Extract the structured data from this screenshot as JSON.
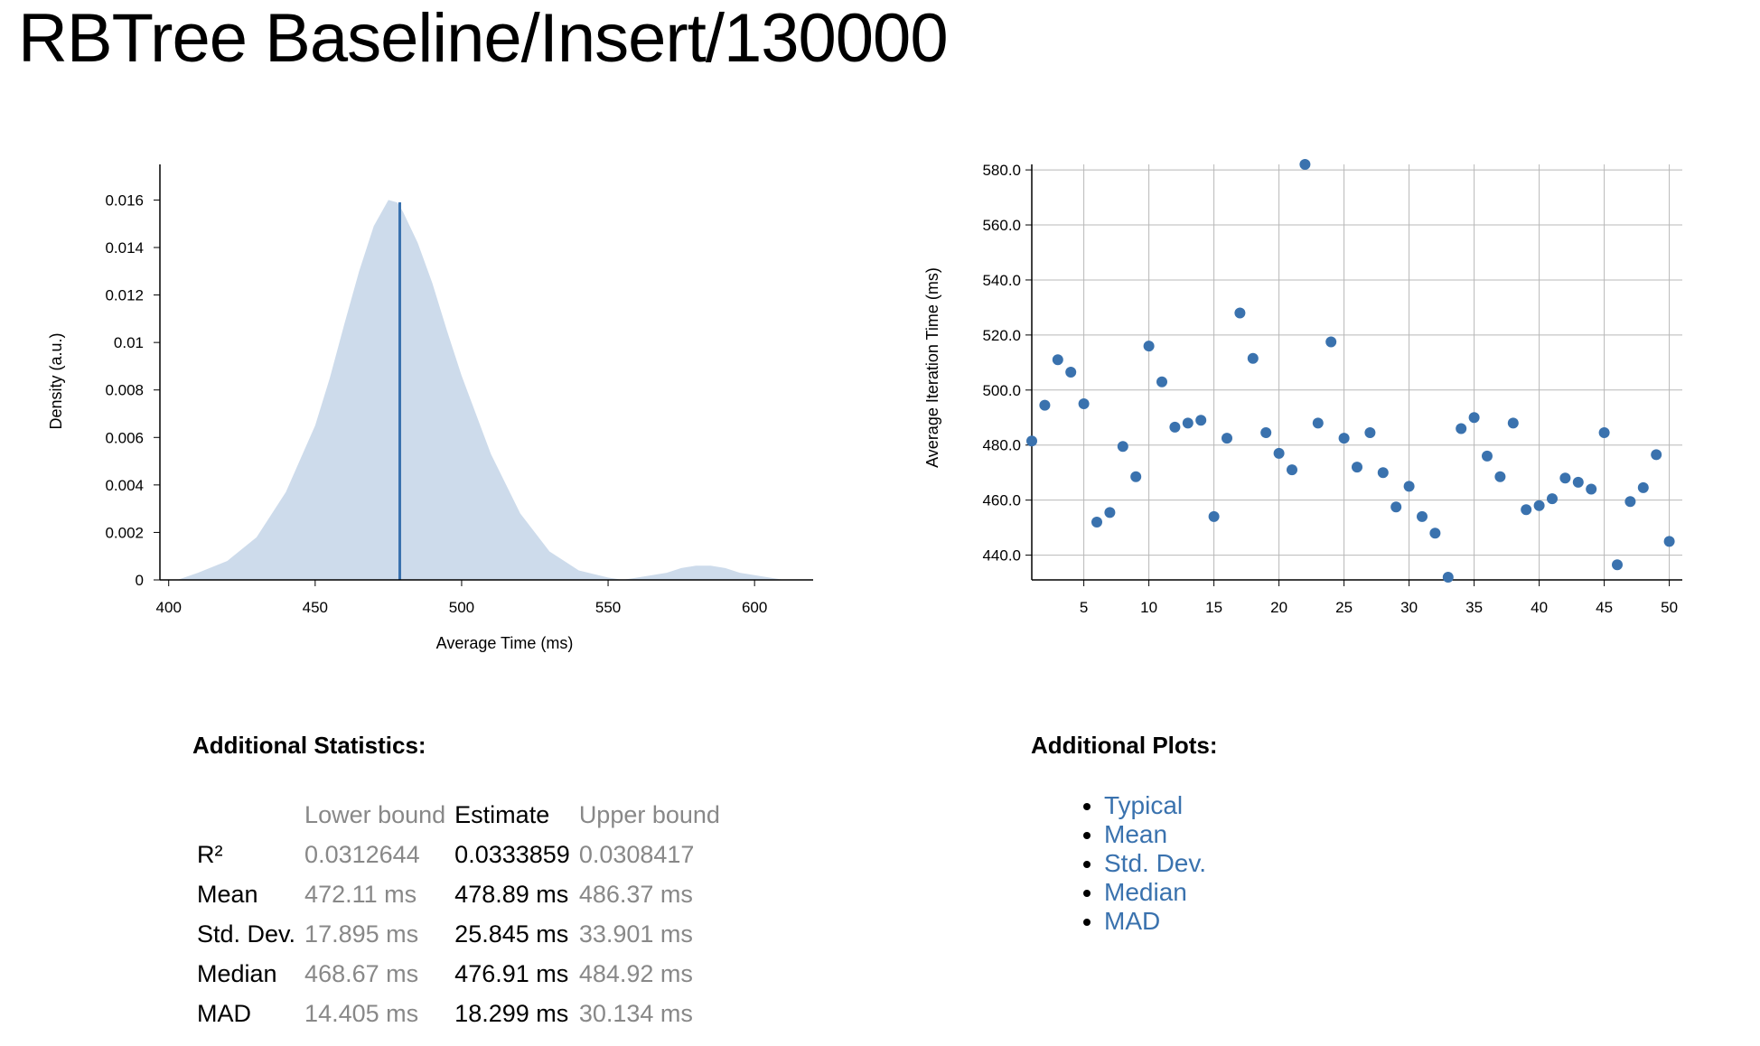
{
  "page": {
    "title": "RBTree Baseline/Insert/130000"
  },
  "colors": {
    "accent": "#3a72ae",
    "pdf_fill": "#cddbeb",
    "muted_text": "#888888"
  },
  "chart_data": [
    {
      "type": "area",
      "xlabel": "Average Time (ms)",
      "ylabel": "Density (a.u.)",
      "xlim": [
        397,
        620
      ],
      "ylim": [
        0,
        0.0175
      ],
      "x_ticks": [
        "400",
        "450",
        "500",
        "550",
        "600"
      ],
      "x_tick_values": [
        400,
        450,
        500,
        550,
        600
      ],
      "y_ticks": [
        "0",
        "0.002",
        "0.004",
        "0.006",
        "0.008",
        "0.01",
        "0.012",
        "0.014",
        "0.016"
      ],
      "y_tick_values": [
        0,
        0.002,
        0.004,
        0.006,
        0.008,
        0.01,
        0.012,
        0.014,
        0.016
      ],
      "x": [
        403,
        410,
        420,
        430,
        440,
        450,
        455,
        460,
        465,
        470,
        475,
        478,
        480,
        485,
        490,
        495,
        500,
        510,
        520,
        530,
        540,
        550,
        555,
        560,
        565,
        570,
        575,
        580,
        585,
        590,
        595,
        600,
        605,
        610
      ],
      "y": [
        0.0,
        0.0003,
        0.0008,
        0.0018,
        0.0037,
        0.0065,
        0.0085,
        0.0108,
        0.013,
        0.0149,
        0.016,
        0.0159,
        0.0155,
        0.0142,
        0.0125,
        0.0105,
        0.0086,
        0.0053,
        0.0028,
        0.0012,
        0.0004,
        0.0001,
        0.0,
        0.0001,
        0.0002,
        0.0003,
        0.0005,
        0.0006,
        0.0006,
        0.0005,
        0.0003,
        0.0002,
        0.0001,
        0.0
      ],
      "mean_line_x": 478.89,
      "grid": false
    },
    {
      "type": "scatter",
      "xlabel": "",
      "ylabel": "Average Iteration Time (ms)",
      "xlim": [
        1,
        51
      ],
      "ylim": [
        431,
        582
      ],
      "x_ticks": [
        "5",
        "10",
        "15",
        "20",
        "25",
        "30",
        "35",
        "40",
        "45",
        "50"
      ],
      "x_tick_values": [
        5,
        10,
        15,
        20,
        25,
        30,
        35,
        40,
        45,
        50
      ],
      "y_ticks": [
        "440.0",
        "460.0",
        "480.0",
        "500.0",
        "520.0",
        "540.0",
        "560.0",
        "580.0"
      ],
      "y_tick_values": [
        440,
        460,
        480,
        500,
        520,
        540,
        560,
        580
      ],
      "grid": true,
      "x": [
        1,
        2,
        3,
        4,
        5,
        6,
        7,
        8,
        9,
        10,
        11,
        12,
        13,
        14,
        15,
        16,
        17,
        18,
        19,
        20,
        21,
        22,
        23,
        24,
        25,
        26,
        27,
        28,
        29,
        30,
        31,
        32,
        33,
        34,
        35,
        36,
        37,
        38,
        39,
        40,
        41,
        42,
        43,
        44,
        45,
        46,
        47,
        48,
        49,
        50
      ],
      "y": [
        481.5,
        494.5,
        511,
        506.5,
        495,
        452,
        455.5,
        479.5,
        468.5,
        516,
        503,
        486.5,
        488,
        489,
        454,
        482.5,
        528,
        511.5,
        484.5,
        477,
        471,
        582,
        488,
        517.5,
        482.5,
        472,
        484.5,
        470,
        457.5,
        465,
        454,
        448,
        432,
        486,
        490,
        476,
        468.5,
        488,
        456.5,
        458,
        460.5,
        468,
        466.5,
        464,
        484.5,
        436.5,
        459.5,
        464.5,
        476.5,
        445
      ]
    }
  ],
  "stats": {
    "title": "Additional Statistics:",
    "columns": [
      "",
      "Lower bound",
      "Estimate",
      "Upper bound"
    ],
    "rows": [
      {
        "label": "R²",
        "lower": "0.0312644",
        "estimate": "0.0333859",
        "upper": "0.0308417"
      },
      {
        "label": "Mean",
        "lower": "472.11 ms",
        "estimate": "478.89 ms",
        "upper": "486.37 ms"
      },
      {
        "label": "Std. Dev.",
        "lower": "17.895 ms",
        "estimate": "25.845 ms",
        "upper": "33.901 ms"
      },
      {
        "label": "Median",
        "lower": "468.67 ms",
        "estimate": "476.91 ms",
        "upper": "484.92 ms"
      },
      {
        "label": "MAD",
        "lower": "14.405 ms",
        "estimate": "18.299 ms",
        "upper": "30.134 ms"
      }
    ]
  },
  "plots": {
    "title": "Additional Plots:",
    "links": [
      "Typical",
      "Mean",
      "Std. Dev.",
      "Median",
      "MAD"
    ]
  }
}
